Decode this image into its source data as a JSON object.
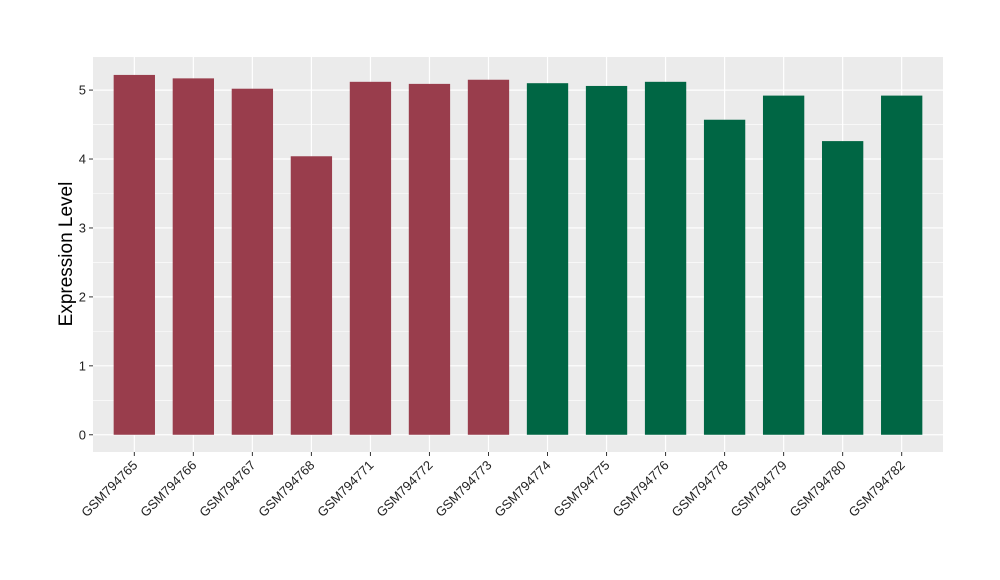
{
  "chart_data": {
    "type": "bar",
    "title": "",
    "xlabel": "",
    "ylabel": "Expression Level",
    "ylim": [
      -0.25,
      5.48
    ],
    "yticks": [
      0,
      1,
      2,
      3,
      4,
      5
    ],
    "grid": true,
    "legend": "none",
    "colors": {
      "group1": "#993d4c",
      "group2": "#006644",
      "panel": "#ebebeb",
      "grid": "#ffffff"
    },
    "categories": [
      "GSM794765",
      "GSM794766",
      "GSM794767",
      "GSM794768",
      "GSM794771",
      "GSM794772",
      "GSM794773",
      "GSM794774",
      "GSM794775",
      "GSM794776",
      "GSM794778",
      "GSM794779",
      "GSM794780",
      "GSM794782"
    ],
    "values": [
      5.22,
      5.17,
      5.02,
      4.04,
      5.12,
      5.09,
      5.15,
      5.1,
      5.06,
      5.12,
      4.57,
      4.92,
      4.26,
      4.92
    ],
    "groups": [
      1,
      1,
      1,
      1,
      1,
      1,
      1,
      2,
      2,
      2,
      2,
      2,
      2,
      2
    ]
  }
}
